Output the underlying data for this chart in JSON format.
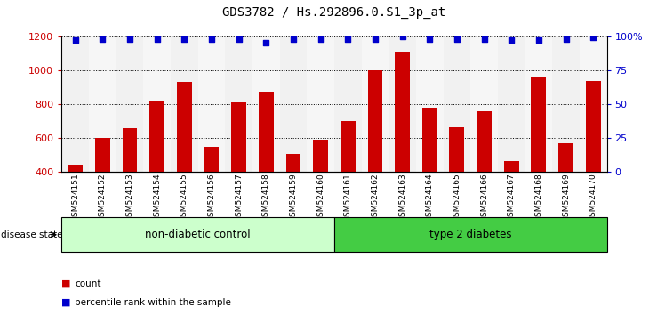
{
  "title": "GDS3782 / Hs.292896.0.S1_3p_at",
  "samples": [
    "GSM524151",
    "GSM524152",
    "GSM524153",
    "GSM524154",
    "GSM524155",
    "GSM524156",
    "GSM524157",
    "GSM524158",
    "GSM524159",
    "GSM524160",
    "GSM524161",
    "GSM524162",
    "GSM524163",
    "GSM524164",
    "GSM524165",
    "GSM524166",
    "GSM524167",
    "GSM524168",
    "GSM524169",
    "GSM524170"
  ],
  "counts": [
    440,
    600,
    655,
    815,
    930,
    548,
    808,
    875,
    505,
    590,
    700,
    1000,
    1110,
    780,
    665,
    755,
    465,
    955,
    570,
    935
  ],
  "percentiles": [
    97,
    98,
    98,
    98,
    98,
    98,
    98,
    95,
    98,
    98,
    98,
    98,
    100,
    98,
    98,
    98,
    97,
    97,
    98,
    99
  ],
  "bar_color": "#cc0000",
  "dot_color": "#0000cc",
  "ylim_left": [
    400,
    1200
  ],
  "ylim_right": [
    0,
    100
  ],
  "yticks_left": [
    400,
    600,
    800,
    1000,
    1200
  ],
  "yticks_right": [
    0,
    25,
    50,
    75,
    100
  ],
  "ytick_labels_right": [
    "0",
    "25",
    "50",
    "75",
    "100%"
  ],
  "group1_label": "non-diabetic control",
  "group2_label": "type 2 diabetes",
  "group1_count": 10,
  "group1_color": "#ccffcc",
  "group2_color": "#44cc44",
  "disease_state_label": "disease state",
  "legend_count_label": "count",
  "legend_pct_label": "percentile rank within the sample",
  "bg_color": "#ffffff",
  "grid_color": "#000000",
  "title_color": "#000000",
  "tick_color_left": "#cc0000",
  "tick_color_right": "#0000cc",
  "stripe_even": "#d8d8d8",
  "stripe_odd": "#e8e8e8"
}
